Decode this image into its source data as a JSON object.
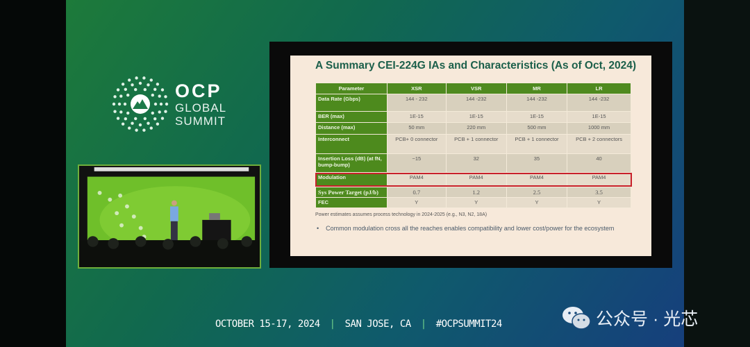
{
  "event": {
    "logo_title": "OCP",
    "logo_line1": "GLOBAL",
    "logo_line2": "SUMMIT",
    "footer": {
      "dates": "OCTOBER 15-17, 2024",
      "location": "SAN JOSE, CA",
      "hashtag": "#OCPSUMMIT24"
    }
  },
  "slide": {
    "title": "A Summary CEI-224G IAs and Characteristics (As of Oct, 2024)",
    "table": {
      "headers": [
        "Parameter",
        "XSR",
        "VSR",
        "MR",
        "LR"
      ],
      "rows": [
        [
          "Data Rate (Gbps)",
          "144 - 232",
          "144 -232",
          "144 -232",
          "144 -232"
        ],
        [
          "BER (max)",
          "1E-15",
          "1E-15",
          "1E-15",
          "1E-15"
        ],
        [
          "Distance (max)",
          "50 mm",
          "220 mm",
          "500 mm",
          "1000 mm"
        ],
        [
          "Interconnect",
          "PCB+ 0 connector",
          "PCB + 1 connector",
          "PCB + 1 connector",
          "PCB + 2 connectors"
        ],
        [
          "Insertion Loss (dB) (at fN, bump-bump)",
          "~15",
          "32",
          "35",
          "40"
        ],
        [
          "Modulation",
          "PAM4",
          "PAM4",
          "PAM4",
          "PAM4"
        ],
        [
          "Sys Power Target (pJ/b)",
          "0.7",
          "1.2",
          "2.5",
          "3.5"
        ],
        [
          "FEC",
          "Y",
          "Y",
          "Y",
          "Y"
        ]
      ],
      "highlighted_row": "Modulation",
      "highlight_color": "#c8202a"
    },
    "note": "Power estimates assumes process technology in 2024-2025 (e.g., N3, N2, 18A)",
    "bullet": "Common modulation cross all the reaches enables compatibility and lower cost/power for the ecosystem"
  },
  "watermark": {
    "icon": "wechat-icon",
    "text": "公众号 · 光芯"
  },
  "colors": {
    "table_header": "#4f8a1f",
    "title": "#1b5f4a",
    "video_border": "#6fae3b"
  }
}
